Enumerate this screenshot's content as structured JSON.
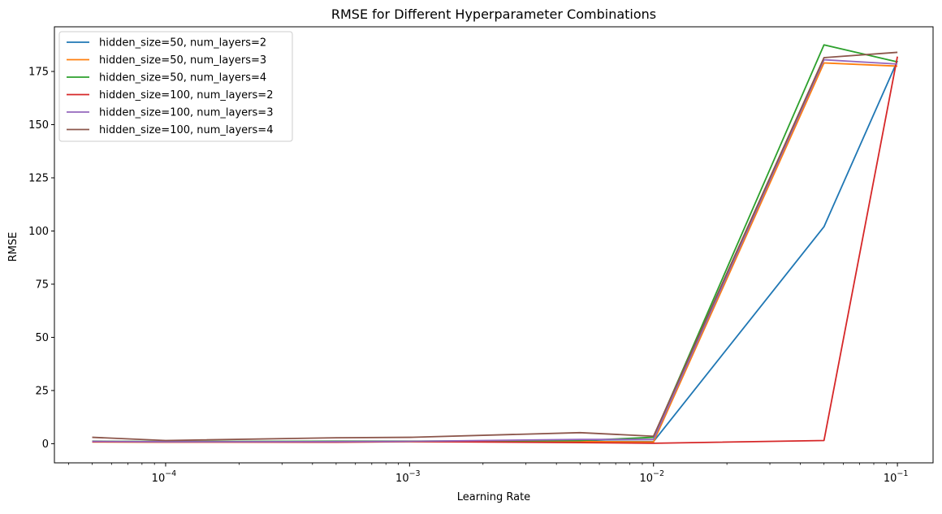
{
  "chart_data": {
    "type": "line",
    "title": "RMSE for Different Hyperparameter Combinations",
    "xlabel": "Learning Rate",
    "ylabel": "RMSE",
    "xscale": "log",
    "xlim": [
      3.5e-05,
      0.14
    ],
    "ylim": [
      -9,
      196
    ],
    "grid": false,
    "legend_position": "top-left",
    "x": [
      5e-05,
      0.0001,
      0.0005,
      0.001,
      0.005,
      0.01,
      0.05,
      0.1
    ],
    "x_ticks": [
      {
        "value": 0.0001,
        "base": "10",
        "exp": "−4"
      },
      {
        "value": 0.001,
        "base": "10",
        "exp": "−3"
      },
      {
        "value": 0.01,
        "base": "10",
        "exp": "−2"
      },
      {
        "value": 0.1,
        "base": "10",
        "exp": "−1"
      }
    ],
    "y_ticks": [
      0,
      25,
      50,
      75,
      100,
      125,
      150,
      175
    ],
    "y_tick_labels": [
      "0",
      "25",
      "50",
      "75",
      "100",
      "125",
      "150",
      "175"
    ],
    "series": [
      {
        "name": "hidden_size=50, num_layers=2",
        "color": "#1f77b4",
        "values": [
          1.0,
          0.8,
          0.9,
          1.0,
          1.2,
          1.0,
          102.0,
          180.0
        ]
      },
      {
        "name": "hidden_size=50, num_layers=3",
        "color": "#ff7f0e",
        "values": [
          0.8,
          0.7,
          0.8,
          0.9,
          1.0,
          0.8,
          179.0,
          177.5
        ]
      },
      {
        "name": "hidden_size=50, num_layers=4",
        "color": "#2ca02c",
        "values": [
          1.2,
          1.0,
          1.2,
          1.2,
          1.5,
          3.0,
          187.5,
          179.5
        ]
      },
      {
        "name": "hidden_size=100, num_layers=2",
        "color": "#d62728",
        "values": [
          0.9,
          0.8,
          0.7,
          1.0,
          0.5,
          0.2,
          1.5,
          182.0
        ]
      },
      {
        "name": "hidden_size=100, num_layers=3",
        "color": "#9467bd",
        "values": [
          1.1,
          0.9,
          1.0,
          1.1,
          2.0,
          2.0,
          180.5,
          178.5
        ]
      },
      {
        "name": "hidden_size=100, num_layers=4",
        "color": "#8c564b",
        "values": [
          3.0,
          1.5,
          2.8,
          3.0,
          5.2,
          3.5,
          181.5,
          184.0
        ]
      }
    ]
  }
}
